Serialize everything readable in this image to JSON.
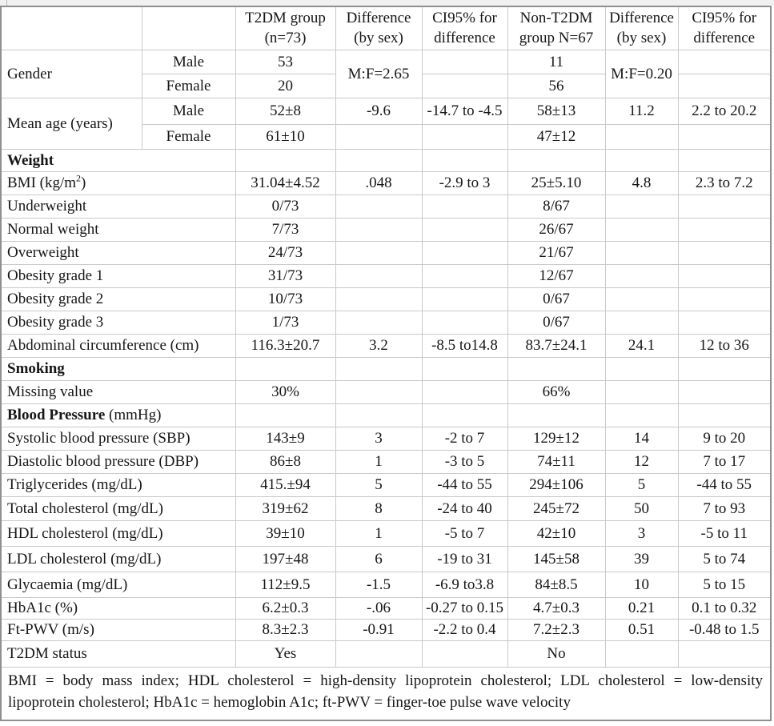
{
  "header": {
    "t2dm": "T2DM group (n=73)",
    "diff1": "Difference (by sex)",
    "ci1": "CI95% for difference",
    "non_t2dm": "Non-T2DM group N=67",
    "diff2": "Difference (by sex)",
    "ci2": "CI95% for difference"
  },
  "gender": {
    "label": "Gender",
    "male_label": "Male",
    "male_t2dm": "53",
    "diff_t2dm": "M:F=2.65",
    "male_non": "11",
    "diff_non": "M:F=0.20",
    "female_label": "Female",
    "female_t2dm": "20",
    "female_non": "56"
  },
  "mean_age": {
    "label": "Mean age (years)",
    "male_label": "Male",
    "male_t2dm": "52±8",
    "male_diff1": "-9.6",
    "male_ci1": "-14.7 to -4.5",
    "male_non": "58±13",
    "male_diff2": "11.2",
    "male_ci2": "2.2 to 20.2",
    "female_label": "Female",
    "female_t2dm": "61±10",
    "female_non": "47±12"
  },
  "body_rows": [
    {
      "kind": "section",
      "label": "Weight",
      "t2dm": "",
      "diff1": "",
      "ci1": "",
      "non": "",
      "diff2": "",
      "ci2": ""
    },
    {
      "kind": "sup",
      "label_pre": "BMI (kg/m",
      "label_sup": "2",
      "label_post": ")",
      "t2dm": "31.04±4.52",
      "diff1": ".048",
      "ci1": "-2.9 to 3",
      "non": "25±5.10",
      "diff2": "4.8",
      "ci2": "2.3 to 7.2"
    },
    {
      "kind": "data",
      "label": "Underweight",
      "t2dm": "0/73",
      "diff1": "",
      "ci1": "",
      "non": "8/67",
      "diff2": "",
      "ci2": ""
    },
    {
      "kind": "data",
      "label": "Normal weight",
      "t2dm": "7/73",
      "diff1": "",
      "ci1": "",
      "non": "26/67",
      "diff2": "",
      "ci2": ""
    },
    {
      "kind": "data",
      "label": "Overweight",
      "t2dm": "24/73",
      "diff1": "",
      "ci1": "",
      "non": "21/67",
      "diff2": "",
      "ci2": ""
    },
    {
      "kind": "data",
      "label": "Obesity grade 1",
      "t2dm": "31/73",
      "diff1": "",
      "ci1": "",
      "non": "12/67",
      "diff2": "",
      "ci2": ""
    },
    {
      "kind": "data",
      "label": "Obesity grade 2",
      "t2dm": "10/73",
      "diff1": "",
      "ci1": "",
      "non": "0/67",
      "diff2": "",
      "ci2": ""
    },
    {
      "kind": "data",
      "label": "Obesity grade 3",
      "t2dm": "1/73",
      "diff1": "",
      "ci1": "",
      "non": "0/67",
      "diff2": "",
      "ci2": ""
    },
    {
      "kind": "data",
      "label": "Abdominal circumference (cm)",
      "t2dm": "116.3±20.7",
      "diff1": "3.2",
      "ci1": "-8.5 to14.8",
      "non": "83.7±24.1",
      "diff2": "24.1",
      "ci2": "12 to 36"
    },
    {
      "kind": "section",
      "label": "Smoking",
      "t2dm": "",
      "diff1": "",
      "ci1": "",
      "non": "",
      "diff2": "",
      "ci2": ""
    },
    {
      "kind": "data",
      "label": "Missing value",
      "t2dm": "30%",
      "diff1": "",
      "ci1": "",
      "non": "66%",
      "diff2": "",
      "ci2": ""
    },
    {
      "kind": "section2",
      "label_bold": "Blood Pressure",
      "label_normal": " (mmHg)",
      "t2dm": "",
      "diff1": "",
      "ci1": "",
      "non": "",
      "diff2": "",
      "ci2": ""
    },
    {
      "kind": "data",
      "label": "Systolic blood pressure (SBP)",
      "t2dm": "143±9",
      "diff1": "3",
      "ci1": "-2 to 7",
      "non": "129±12",
      "diff2": "14",
      "ci2": "9 to 20"
    },
    {
      "kind": "data",
      "label": "Diastolic blood pressure (DBP)",
      "t2dm": "86±8",
      "diff1": "1",
      "ci1": "-3 to 5",
      "non": "74±11",
      "diff2": "12",
      "ci2": "7 to 17"
    },
    {
      "kind": "data",
      "label": "Triglycerides (mg/dL)",
      "t2dm": "415.±94",
      "diff1": "5",
      "ci1": "-44 to 55",
      "non": "294±106",
      "diff2": "5",
      "ci2": "-44 to 55"
    },
    {
      "kind": "data",
      "label": "Total cholesterol (mg/dL)",
      "t2dm": "319±62",
      "diff1": "8",
      "ci1": "-24 to 40",
      "non": "245±72",
      "diff2": "50",
      "ci2": "7 to 93"
    },
    {
      "kind": "data",
      "label": "HDL cholesterol (mg/dL)",
      "t2dm": "39±10",
      "diff1": "1",
      "ci1": "-5 to 7",
      "non": "42±10",
      "diff2": "3",
      "ci2": "-5 to 11"
    },
    {
      "kind": "data",
      "label": "LDL cholesterol (mg/dL)",
      "t2dm": "197±48",
      "diff1": "6",
      "ci1": "-19 to 31",
      "non": "145±58",
      "diff2": "39",
      "ci2": "5 to 74"
    },
    {
      "kind": "data",
      "label": "Glycaemia (mg/dL)",
      "t2dm": "112±9.5",
      "diff1": "-1.5",
      "ci1": "-6.9 to3.8",
      "non": "84±8.5",
      "diff2": "10",
      "ci2": "5 to 15"
    },
    {
      "kind": "data",
      "label": "HbA1c (%)",
      "t2dm": "6.2±0.3",
      "diff1": "-.06",
      "ci1": "-0.27 to 0.15",
      "non": "4.7±0.3",
      "diff2": "0.21",
      "ci2": "0.1 to 0.32"
    },
    {
      "kind": "data",
      "label": "Ft-PWV (m/s)",
      "t2dm": "8.3±2.3",
      "diff1": "-0.91",
      "ci1": "-2.2 to 0.4",
      "non": "7.2±2.3",
      "diff2": "0.51",
      "ci2": "-0.48 to 1.5"
    },
    {
      "kind": "data",
      "label": "T2DM status",
      "t2dm": "Yes",
      "diff1": "",
      "ci1": "",
      "non": "No",
      "diff2": "",
      "ci2": ""
    }
  ],
  "footnote": "BMI = body mass index; HDL cholesterol = high-density lipoprotein cholesterol; LDL cholesterol = low-density lipoprotein cholesterol; HbA1c = hemoglobin A1c; ft-PWV = finger-toe pulse wave velocity"
}
